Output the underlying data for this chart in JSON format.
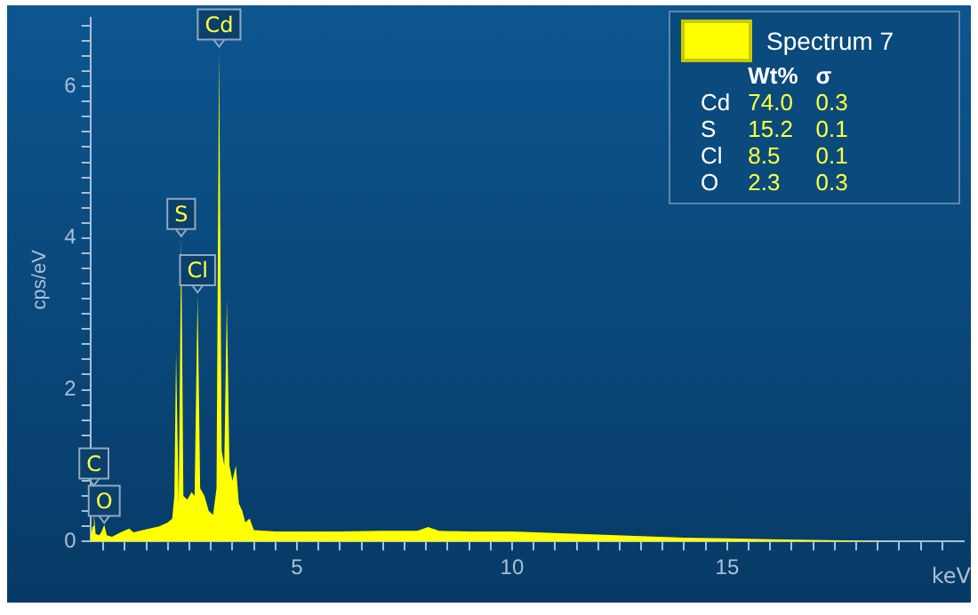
{
  "chart_data": {
    "type": "area",
    "xlabel": "keV",
    "ylabel": "cps/eV",
    "legend": "top right",
    "xlim": [
      0.2,
      20.5
    ],
    "ylim": [
      0,
      6.9
    ],
    "grid": false,
    "xticks": [
      {
        "value": 0.5,
        "label": null
      },
      {
        "value": 1,
        "label": null
      },
      {
        "value": 1.5,
        "label": null
      },
      {
        "value": 2,
        "label": null
      },
      {
        "value": 2.5,
        "label": null
      },
      {
        "value": 3,
        "label": null
      },
      {
        "value": 3.5,
        "label": null
      },
      {
        "value": 4,
        "label": null
      },
      {
        "value": 4.5,
        "label": null
      },
      5,
      {
        "value": 5.5,
        "label": null
      },
      {
        "value": 6,
        "label": null
      },
      {
        "value": 6.5,
        "label": null
      },
      {
        "value": 7,
        "label": null
      },
      {
        "value": 7.5,
        "label": null
      },
      {
        "value": 8,
        "label": null
      },
      {
        "value": 8.5,
        "label": null
      },
      {
        "value": 9,
        "label": null
      },
      {
        "value": 9.5,
        "label": null
      },
      10,
      {
        "value": 10.5,
        "label": null
      },
      {
        "value": 11,
        "label": null
      },
      {
        "value": 11.5,
        "label": null
      },
      {
        "value": 12,
        "label": null
      },
      {
        "value": 12.5,
        "label": null
      },
      {
        "value": 13,
        "label": null
      },
      {
        "value": 13.5,
        "label": null
      },
      {
        "value": 14,
        "label": null
      },
      {
        "value": 14.5,
        "label": null
      },
      15,
      {
        "value": 15.5,
        "label": null
      },
      {
        "value": 16,
        "label": null
      },
      {
        "value": 16.5,
        "label": null
      },
      {
        "value": 17,
        "label": null
      },
      {
        "value": 17.5,
        "label": null
      },
      {
        "value": 18,
        "label": null
      },
      {
        "value": 18.5,
        "label": null
      },
      {
        "value": 19,
        "label": null
      },
      {
        "value": 19.5,
        "label": null
      },
      {
        "value": 20,
        "label": null
      }
    ],
    "yticks": [
      0,
      {
        "value": 0.2,
        "label": null
      },
      {
        "value": 0.4,
        "label": null
      },
      {
        "value": 0.6,
        "label": null
      },
      {
        "value": 0.8,
        "label": null
      },
      {
        "value": 1,
        "label": null
      },
      {
        "value": 1.2,
        "label": null
      },
      {
        "value": 1.4,
        "label": null
      },
      {
        "value": 1.6,
        "label": null
      },
      {
        "value": 1.8,
        "label": null
      },
      2,
      {
        "value": 2.2,
        "label": null
      },
      {
        "value": 2.4,
        "label": null
      },
      {
        "value": 2.6,
        "label": null
      },
      {
        "value": 2.8,
        "label": null
      },
      {
        "value": 3,
        "label": null
      },
      {
        "value": 3.2,
        "label": null
      },
      {
        "value": 3.4,
        "label": null
      },
      {
        "value": 3.6,
        "label": null
      },
      {
        "value": 3.8,
        "label": null
      },
      4,
      {
        "value": 4.2,
        "label": null
      },
      {
        "value": 4.4,
        "label": null
      },
      {
        "value": 4.6,
        "label": null
      },
      {
        "value": 4.8,
        "label": null
      },
      {
        "value": 5,
        "label": null
      },
      {
        "value": 5.2,
        "label": null
      },
      {
        "value": 5.4,
        "label": null
      },
      {
        "value": 5.6,
        "label": null
      },
      {
        "value": 5.8,
        "label": null
      },
      6,
      {
        "value": 6.2,
        "label": null
      },
      {
        "value": 6.4,
        "label": null
      },
      {
        "value": 6.6,
        "label": null
      },
      {
        "value": 6.8,
        "label": null
      }
    ],
    "series": [
      {
        "name": "Spectrum 7",
        "color": "#ffff00",
        "x": [
          0.2,
          0.25,
          0.28,
          0.32,
          0.4,
          0.45,
          0.52,
          0.58,
          0.7,
          0.8,
          0.9,
          1.1,
          1.2,
          1.5,
          1.8,
          2.0,
          2.1,
          2.15,
          2.19,
          2.25,
          2.31,
          2.36,
          2.45,
          2.55,
          2.62,
          2.69,
          2.75,
          2.85,
          2.95,
          3.05,
          3.13,
          3.19,
          3.25,
          3.31,
          3.37,
          3.43,
          3.5,
          3.58,
          3.65,
          3.73,
          3.8,
          3.9,
          4.0,
          4.5,
          5,
          6,
          7,
          7.8,
          8.05,
          8.3,
          9,
          10,
          11,
          12,
          13,
          14,
          15,
          16,
          17,
          18,
          19
        ],
        "values": [
          0.05,
          0.2,
          0.37,
          0.1,
          0.08,
          0.12,
          0.22,
          0.08,
          0.06,
          0.09,
          0.12,
          0.17,
          0.12,
          0.16,
          0.2,
          0.25,
          0.3,
          0.6,
          2.5,
          0.5,
          4.0,
          0.6,
          0.55,
          0.65,
          0.6,
          3.26,
          0.7,
          0.6,
          0.4,
          0.35,
          0.7,
          6.5,
          1.2,
          1.0,
          3.18,
          1.0,
          0.8,
          1.0,
          0.5,
          0.4,
          0.25,
          0.3,
          0.15,
          0.13,
          0.13,
          0.13,
          0.14,
          0.14,
          0.19,
          0.14,
          0.13,
          0.13,
          0.11,
          0.09,
          0.07,
          0.05,
          0.04,
          0.03,
          0.02,
          0.01,
          0
        ]
      }
    ],
    "annotations": [
      {
        "text": "C",
        "x": 0.28,
        "y": 0.37
      },
      {
        "text": "O",
        "x": 0.52,
        "y": 0.22
      },
      {
        "text": "S",
        "x": 2.31,
        "y": 4.0
      },
      {
        "text": "Cl",
        "x": 2.69,
        "y": 3.26
      },
      {
        "text": "Cd",
        "x": 3.19,
        "y": 6.5
      },
      "Wt%",
      "σ",
      "Cd",
      "74.0",
      "0.3",
      "S",
      "15.2",
      "0.1",
      "Cl",
      "8.5",
      "0.1",
      "O",
      "2.3",
      "0.3"
    ]
  }
}
